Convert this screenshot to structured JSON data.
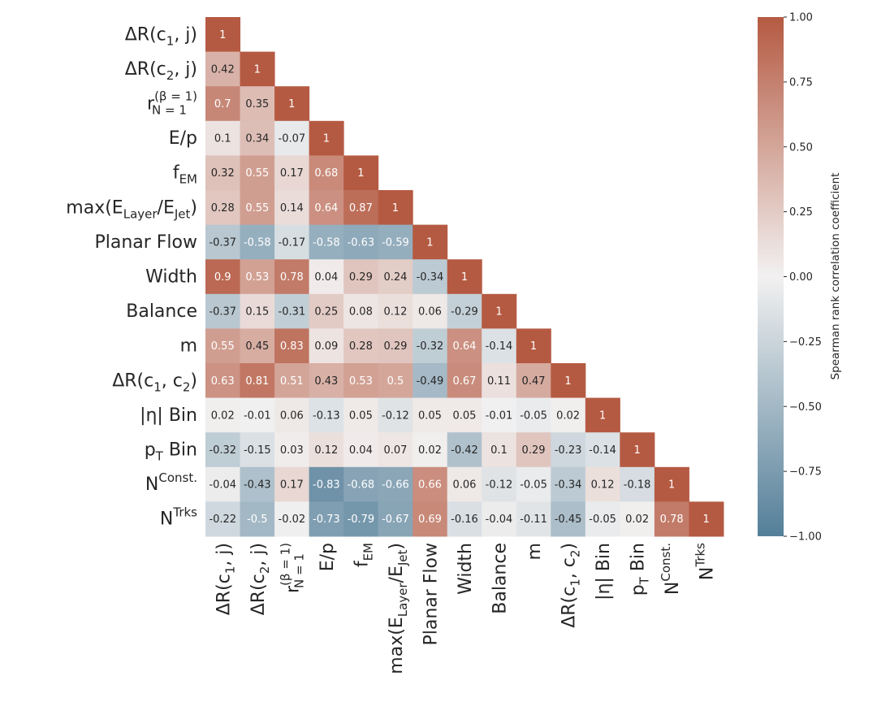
{
  "chart_data": {
    "type": "heatmap",
    "title": "",
    "variables": [
      {
        "id": "dR_c1_j",
        "base": "ΔR(c",
        "sub": "1",
        "tail": ", j)"
      },
      {
        "id": "dR_c2_j",
        "base": "ΔR(c",
        "sub": "2",
        "tail": ", j)"
      },
      {
        "id": "r_N1",
        "base": "r",
        "sub": "N = 1",
        "sup": "(β = 1)",
        "tail": ""
      },
      {
        "id": "E_p",
        "base": "E/p",
        "sub": "",
        "tail": ""
      },
      {
        "id": "f_EM",
        "base": "f",
        "sub": "EM",
        "tail": ""
      },
      {
        "id": "max_E",
        "base": "max(E",
        "sub": "Layer",
        "mid": "/E",
        "sub2": "Jet",
        "tail": ")"
      },
      {
        "id": "planar_flow",
        "base": "Planar Flow",
        "sub": "",
        "tail": ""
      },
      {
        "id": "width",
        "base": "Width",
        "sub": "",
        "tail": ""
      },
      {
        "id": "balance",
        "base": "Balance",
        "sub": "",
        "tail": ""
      },
      {
        "id": "m",
        "base": "m",
        "sub": "",
        "tail": ""
      },
      {
        "id": "dR_c1_c2",
        "base": "ΔR(c",
        "sub": "1",
        "mid": ", c",
        "sub2": "2",
        "tail": ")"
      },
      {
        "id": "eta_bin",
        "base": "|η| Bin",
        "sub": "",
        "tail": ""
      },
      {
        "id": "pt_bin",
        "base": "p",
        "sub": "T",
        "tail": " Bin"
      },
      {
        "id": "n_const",
        "base": "N",
        "sup": "Const.",
        "sub": "",
        "tail": ""
      },
      {
        "id": "n_trks",
        "base": "N",
        "sup": "Trks",
        "sub": "",
        "tail": ""
      }
    ],
    "matrix_lower": [
      [
        1
      ],
      [
        0.42,
        1
      ],
      [
        0.7,
        0.35,
        1
      ],
      [
        0.1,
        0.34,
        -0.07,
        1
      ],
      [
        0.32,
        0.55,
        0.17,
        0.68,
        1
      ],
      [
        0.28,
        0.55,
        0.14,
        0.64,
        0.87,
        1
      ],
      [
        -0.37,
        -0.58,
        -0.17,
        -0.58,
        -0.63,
        -0.59,
        1
      ],
      [
        0.9,
        0.53,
        0.78,
        0.04,
        0.29,
        0.24,
        -0.34,
        1
      ],
      [
        -0.37,
        0.15,
        -0.31,
        0.25,
        0.08,
        0.12,
        0.06,
        -0.29,
        1
      ],
      [
        0.55,
        0.45,
        0.83,
        0.09,
        0.28,
        0.29,
        -0.32,
        0.64,
        -0.14,
        1
      ],
      [
        0.63,
        0.81,
        0.51,
        0.43,
        0.53,
        0.5,
        -0.49,
        0.67,
        0.11,
        0.47,
        1
      ],
      [
        0.02,
        -0.01,
        0.06,
        -0.13,
        0.05,
        -0.12,
        0.05,
        0.05,
        -0.01,
        -0.05,
        0.02,
        1
      ],
      [
        -0.32,
        -0.15,
        0.03,
        0.12,
        0.04,
        0.07,
        0.02,
        -0.42,
        0.1,
        0.29,
        -0.23,
        -0.14,
        1
      ],
      [
        -0.04,
        -0.43,
        0.17,
        -0.83,
        -0.68,
        -0.66,
        0.66,
        0.06,
        -0.12,
        -0.05,
        -0.34,
        0.12,
        -0.18,
        1
      ],
      [
        -0.22,
        -0.5,
        -0.02,
        -0.73,
        -0.79,
        -0.67,
        0.69,
        -0.16,
        -0.04,
        -0.11,
        -0.45,
        -0.05,
        0.02,
        0.78,
        1
      ]
    ],
    "colorbar": {
      "label": "Spearman rank correlation coefficient",
      "range": [
        -1,
        1
      ],
      "ticks": [
        1.0,
        0.75,
        0.5,
        0.25,
        0.0,
        -0.25,
        -0.5,
        -0.75,
        -1.0
      ],
      "tick_labels": [
        "1.00",
        "0.75",
        "0.50",
        "0.25",
        "0.00",
        "−0.25",
        "−0.50",
        "−0.75",
        "−1.00"
      ],
      "color_low": "#547f99",
      "color_mid": "#f2f1f1",
      "color_high": "#b55a42"
    },
    "xlabel": "",
    "ylabel": "",
    "legend": "colorbar-right"
  }
}
